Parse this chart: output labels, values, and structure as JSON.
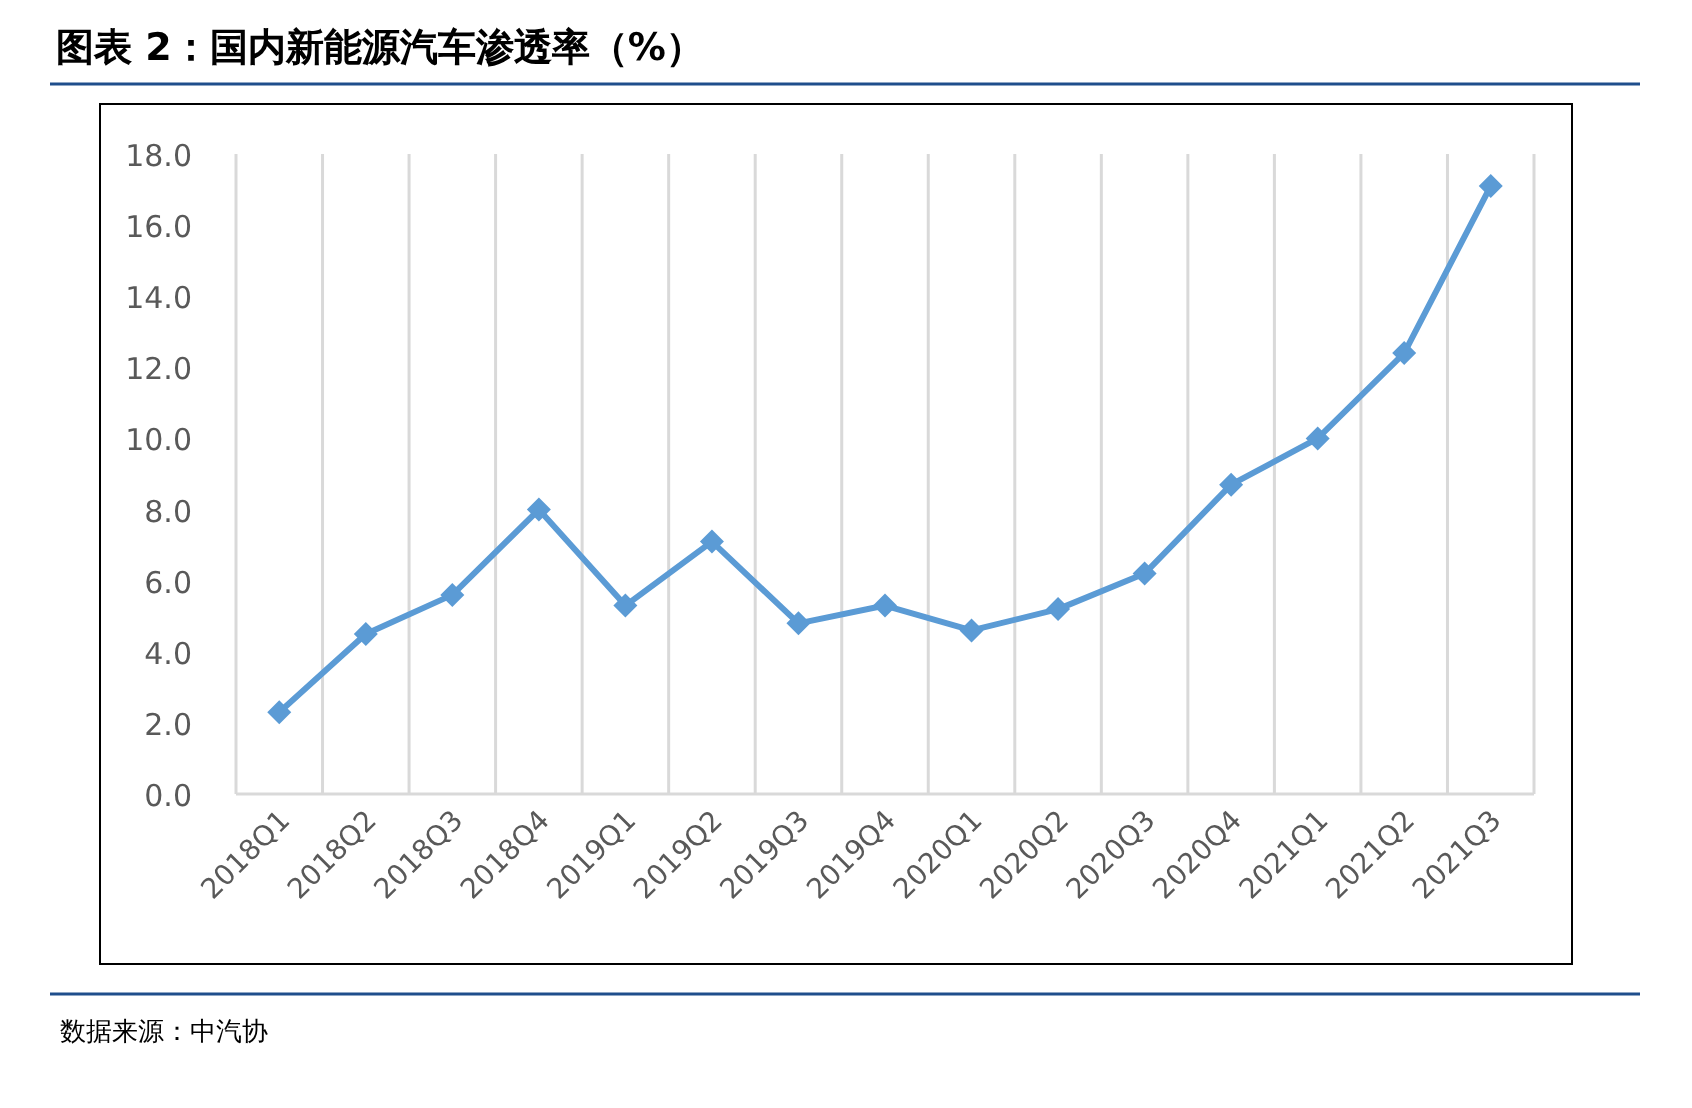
{
  "chart_data": {
    "type": "line",
    "title": "图表 2：国内新能源汽车渗透率（%）",
    "categories": [
      "2018Q1",
      "2018Q2",
      "2018Q3",
      "2018Q4",
      "2019Q1",
      "2019Q2",
      "2019Q3",
      "2019Q4",
      "2020Q1",
      "2020Q2",
      "2020Q3",
      "2020Q4",
      "2021Q1",
      "2021Q2",
      "2021Q3"
    ],
    "series": [
      {
        "color": "#5b9bd5",
        "values": [
          2.3,
          4.5,
          5.6,
          8.0,
          5.3,
          7.1,
          4.8,
          5.3,
          4.6,
          5.2,
          6.2,
          8.7,
          10.0,
          12.4,
          17.1
        ]
      }
    ],
    "ylim": [
      0,
      18
    ],
    "yticks": [
      {
        "value": 0,
        "label": "0.0"
      },
      {
        "value": 2,
        "label": "2.0"
      },
      {
        "value": 4,
        "label": "4.0"
      },
      {
        "value": 6,
        "label": "6.0"
      },
      {
        "value": 8,
        "label": "8.0"
      },
      {
        "value": 10,
        "label": "10.0"
      },
      {
        "value": 12,
        "label": "12.0"
      },
      {
        "value": 14,
        "label": "14.0"
      },
      {
        "value": 16,
        "label": "16.0"
      },
      {
        "value": 18,
        "label": "18.0"
      }
    ],
    "grid": "x",
    "marker": "diamond",
    "line_style": "solid",
    "annotations": [
      "数据来源：中汽协"
    ]
  }
}
